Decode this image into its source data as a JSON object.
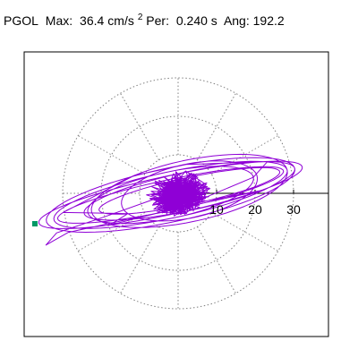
{
  "header": {
    "station": "PGOL",
    "max_label": "Max:",
    "max_value": "36.4",
    "max_unit": "cm/s",
    "max_exp": "2",
    "per_label": "Per:",
    "per_value": "0.240 s",
    "ang_label": "Ang: 192.2"
  },
  "chart_data": {
    "type": "scatter",
    "plot": "polar particle-motion (hodogram)",
    "radial_ticks": [
      10,
      20,
      30
    ],
    "rmax": 40,
    "grid": "dotted polar rings every 10, spokes every 30 degrees",
    "max_amplitude": 36.4,
    "angle_deg": 192.2,
    "colors": {
      "trace": "#8f00d6",
      "grid": "#808080",
      "marker": "#009966",
      "axis": "#000000"
    }
  }
}
